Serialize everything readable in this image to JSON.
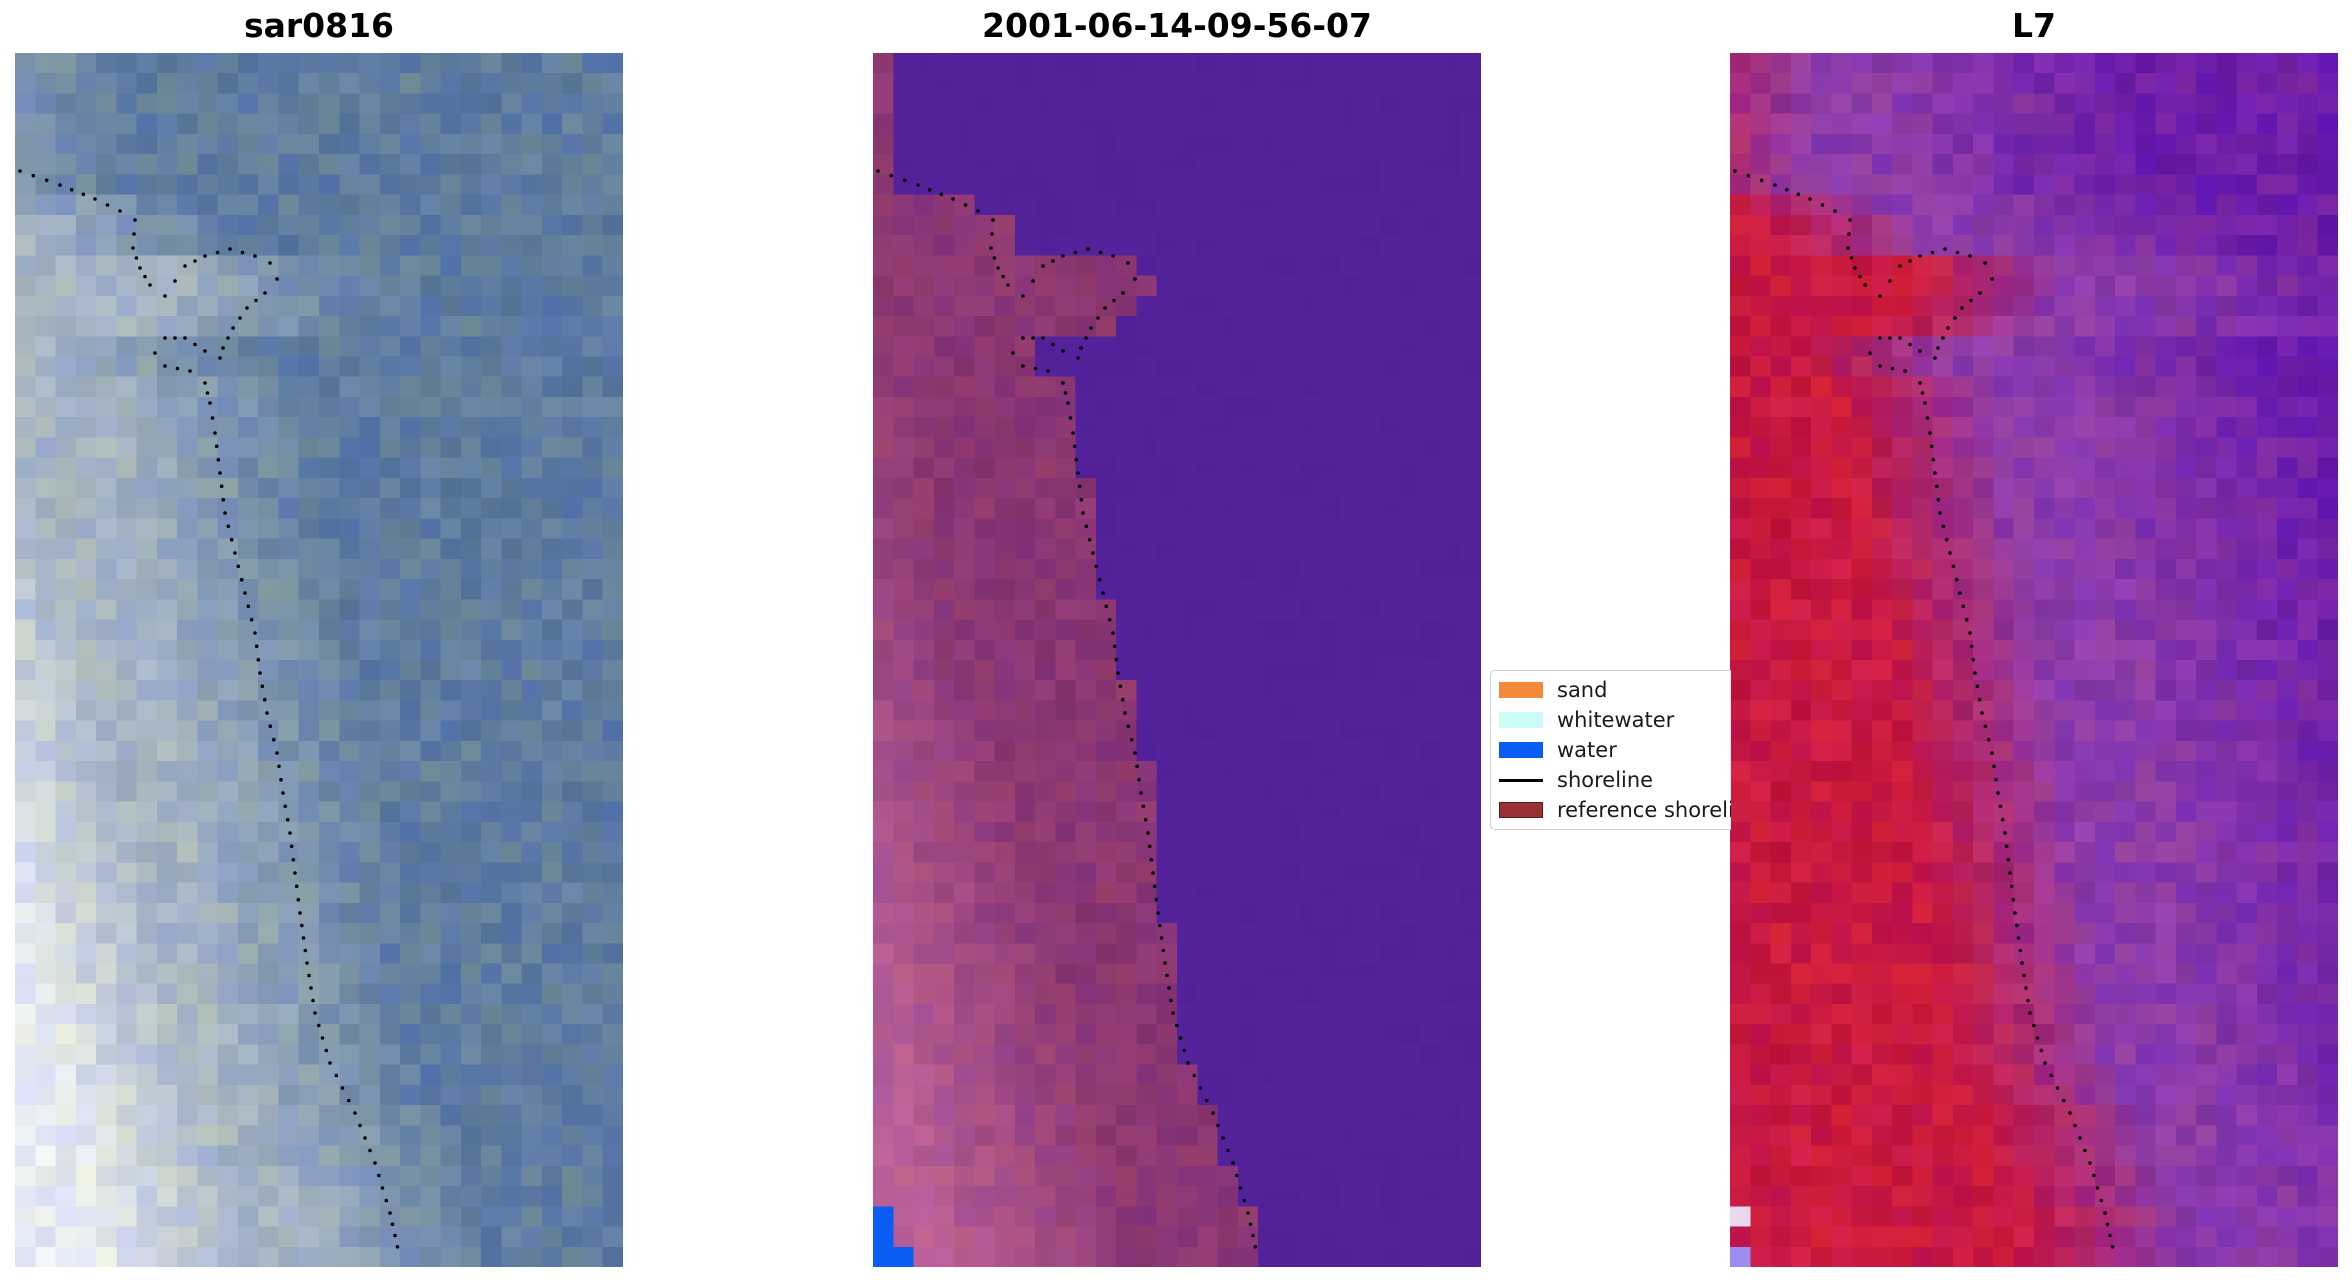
{
  "panels": [
    {
      "title": "sar0816",
      "kind": "rgb"
    },
    {
      "title": "2001-06-14-09-56-07",
      "kind": "classified"
    },
    {
      "title": "L7",
      "kind": "index"
    }
  ],
  "legend": {
    "items": [
      {
        "label": "sand",
        "color": "#f5883a",
        "type": "patch"
      },
      {
        "label": "whitewater",
        "color": "#ccfcf8",
        "type": "patch"
      },
      {
        "label": "water",
        "color": "#0a5cf2",
        "type": "patch"
      },
      {
        "label": "shoreline",
        "color": "#000000",
        "type": "line"
      },
      {
        "label": "reference shoreline",
        "color": "#9a3033",
        "type": "patch"
      }
    ]
  },
  "colors": {
    "land_tint": "#8a3570",
    "water_class": "#53229a",
    "index_high": "#c8103a",
    "index_low": "#7a2ea8"
  }
}
